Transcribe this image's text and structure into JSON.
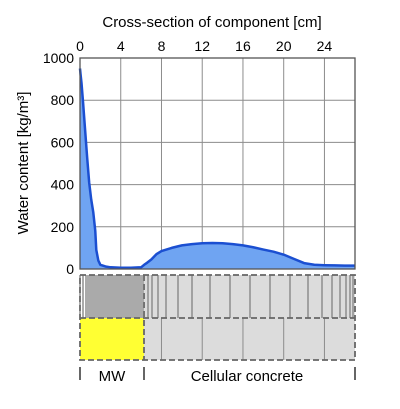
{
  "chart_data": {
    "type": "area",
    "title": "",
    "xlabel": "Cross-section of component [cm]",
    "ylabel": "Water content [kg/m³]",
    "xlim": [
      0,
      27
    ],
    "ylim": [
      0,
      1000
    ],
    "x_ticks": [
      "0",
      "4",
      "8",
      "12",
      "16",
      "20",
      "24"
    ],
    "y_ticks": [
      "0",
      "200",
      "400",
      "600",
      "800",
      "1000"
    ],
    "grid": true,
    "fill_color": "#6fa4f2",
    "line_color": "#1b4fd1",
    "series": [
      {
        "x": [
          0,
          0.05,
          0.15,
          0.3,
          0.5,
          0.7,
          0.9,
          1.1,
          1.3,
          1.5,
          1.6,
          1.8,
          2.0,
          2.5,
          3.0,
          4.0,
          5.0,
          6.0,
          6.3,
          6.6,
          7.0,
          7.5,
          8.0,
          9.0,
          10.0,
          11.0,
          12.0,
          13.0,
          14.0,
          15.0,
          16.0,
          17.0,
          18.0,
          19.0,
          20.0,
          21.0,
          22.0,
          23.0,
          24.0,
          25.0,
          26.0,
          27.0
        ],
        "y": [
          950,
          925,
          880,
          790,
          660,
          530,
          410,
          330,
          270,
          180,
          90,
          40,
          20,
          12,
          8,
          6,
          6,
          8,
          20,
          30,
          45,
          70,
          85,
          100,
          112,
          118,
          122,
          123,
          122,
          118,
          112,
          103,
          92,
          82,
          68,
          48,
          28,
          20,
          18,
          17,
          16,
          16
        ]
      }
    ]
  },
  "layers": {
    "mw_label": "MW",
    "cc_label": "Cellular concrete",
    "mw_color": "#ffff33",
    "cc_color": "#dcdcdc"
  }
}
